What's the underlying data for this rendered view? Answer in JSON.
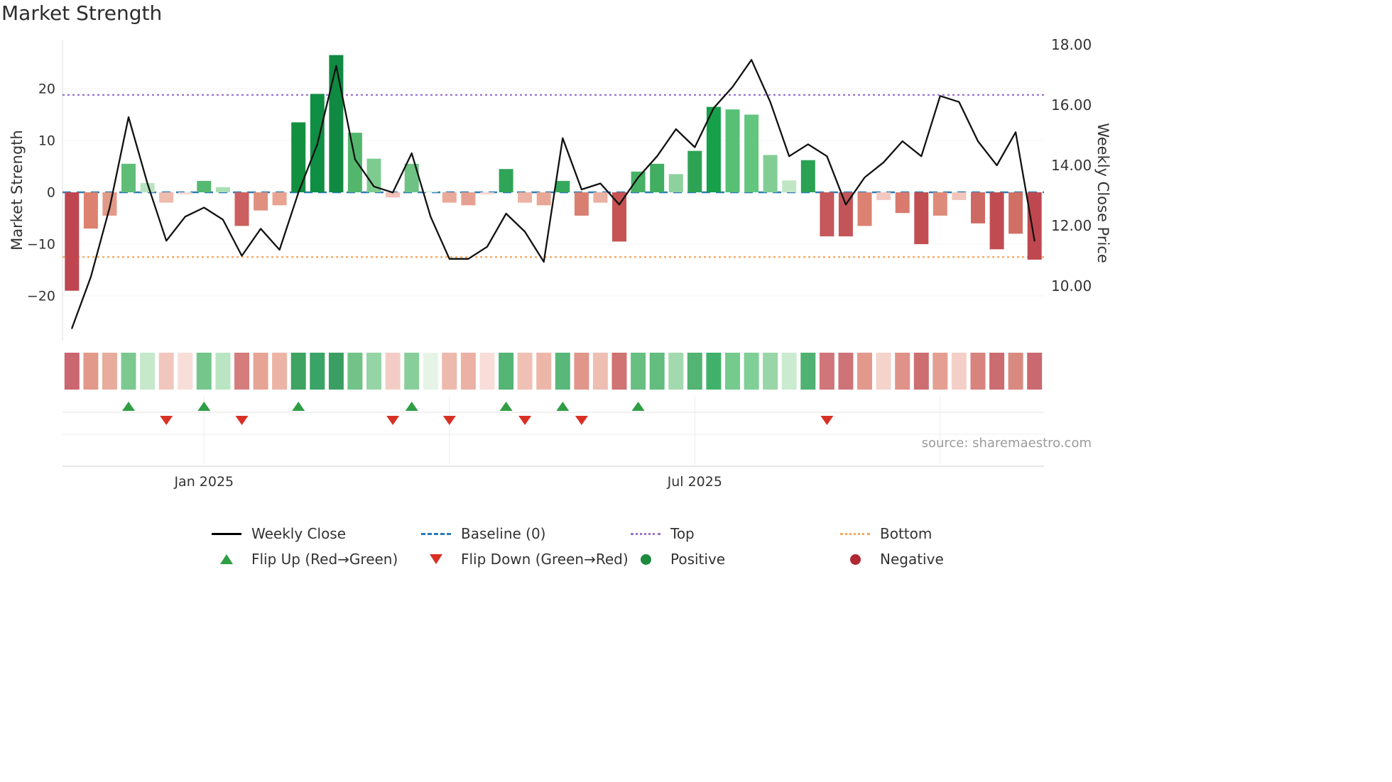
{
  "title": "Market Strength",
  "source": "source: sharemaestro.com",
  "chart_data": {
    "type": "bar+line",
    "weeks": 52,
    "ylabel_left": "Market Strength",
    "ylabel_right": "Weekly Close Price",
    "left_axis": {
      "ticks": [
        -20,
        -10,
        0,
        10,
        20
      ],
      "ylim": [
        -28,
        30
      ]
    },
    "right_axis": {
      "ticks": [
        18,
        16,
        14,
        12,
        10
      ],
      "tick_labels": [
        "18.00",
        "16.00",
        "14.00",
        "12.00",
        "10.00"
      ],
      "ylim": [
        8.2,
        18.3
      ]
    },
    "x_ticks": [
      {
        "label": "Jan 2025",
        "week": 8
      },
      {
        "label": "Jul 2025",
        "week": 34
      }
    ],
    "x_gridline_weeks": [
      8,
      21,
      34,
      47
    ],
    "series": [
      {
        "name": "Market Strength",
        "type": "bar",
        "axis": "left",
        "values": [
          -19,
          -7,
          -4.5,
          5.5,
          1.8,
          -2,
          -0.4,
          2.2,
          1,
          -6.5,
          -3.5,
          -2.5,
          13.5,
          19,
          26.5,
          11.5,
          6.5,
          -1,
          5.5,
          0.3,
          -2,
          -2.5,
          -0.4,
          4.5,
          -2,
          -2.5,
          2.2,
          -4.5,
          -2,
          -9.5,
          4,
          5.5,
          3.5,
          8,
          16.5,
          16,
          15,
          7.2,
          2.3,
          6.2,
          -8.5,
          -8.5,
          -6.5,
          -1.5,
          -4,
          -10,
          -4.5,
          -1.5,
          -6,
          -11,
          -8,
          -13
        ]
      },
      {
        "name": "Weekly Close",
        "type": "line",
        "axis": "right",
        "values": [
          8.6,
          10.3,
          12.6,
          15.6,
          13.4,
          11.5,
          12.3,
          12.6,
          12.2,
          11.0,
          11.9,
          11.2,
          13.1,
          14.7,
          17.3,
          14.2,
          13.3,
          13.1,
          14.4,
          12.3,
          10.9,
          10.9,
          11.3,
          12.4,
          11.8,
          10.8,
          14.9,
          13.2,
          13.4,
          12.7,
          13.6,
          14.3,
          15.2,
          14.6,
          15.9,
          16.6,
          17.5,
          16.1,
          14.3,
          14.7,
          14.3,
          12.7,
          13.6,
          14.1,
          14.8,
          14.3,
          16.3,
          16.1,
          14.8,
          14.0,
          15.1,
          11.5
        ]
      }
    ],
    "bar_colors": [
      "#bf4650",
      "#dd8270",
      "#e29a86",
      "#5fbd78",
      "#b9e3c0",
      "#eebbae",
      "#f6d7d0",
      "#55b971",
      "#aadfb4",
      "#cc5f5f",
      "#e0907e",
      "#e8a391",
      "#12903f",
      "#0f8f44",
      "#108a42",
      "#53b66d",
      "#7ecb90",
      "#f0c2b8",
      "#6ec384",
      "#dff1e0",
      "#e9aa9a",
      "#e6a091",
      "#f6d6cf",
      "#2fa557",
      "#ecb2a4",
      "#e8a796",
      "#35a95b",
      "#d97f72",
      "#eab0a1",
      "#c65454",
      "#47b166",
      "#41ae62",
      "#8ed19e",
      "#2ea355",
      "#16a04a",
      "#57c075",
      "#63c67f",
      "#82cd94",
      "#c0e6c6",
      "#2aa153",
      "#c6575b",
      "#c3555a",
      "#dc8273",
      "#f2c9c0",
      "#d97a6e",
      "#c24e52",
      "#de8a7a",
      "#f1c5bb",
      "#ce6862",
      "#c04c52",
      "#d07065",
      "#bf4850"
    ],
    "reference_lines": {
      "baseline": 0,
      "top": 18.8,
      "bottom": -12.5
    },
    "flip_up_weeks": [
      4,
      8,
      13,
      19,
      24,
      27,
      31
    ],
    "flip_down_weeks": [
      6,
      10,
      18,
      21,
      25,
      28,
      41
    ]
  },
  "colors": {
    "line": "#111111",
    "baseline": "#2a7ab9",
    "top_line": "#9a72d0",
    "bottom_line": "#f6a65a",
    "flip_up": "#2f9e44",
    "flip_down": "#d93025",
    "positive_dot": "#1d8a3e",
    "negative_dot": "#b02833"
  },
  "legend": {
    "items": [
      {
        "label": "Weekly Close",
        "swatch": "line-solid",
        "color": "#000000"
      },
      {
        "label": "Baseline (0)",
        "swatch": "line-dashed",
        "color": "#2a7ab9"
      },
      {
        "label": "Top",
        "swatch": "line-dotted",
        "color": "#9a72d0"
      },
      {
        "label": "Bottom",
        "swatch": "line-dotted",
        "color": "#f6a65a"
      },
      {
        "label": "Flip Up (Red→Green)",
        "swatch": "triangle-up",
        "color": "#2f9e44"
      },
      {
        "label": "Flip Down (Green→Red)",
        "swatch": "triangle-down",
        "color": "#d93025"
      },
      {
        "label": "Positive",
        "swatch": "dot",
        "color": "#1d8a3e"
      },
      {
        "label": "Negative",
        "swatch": "dot",
        "color": "#b02833"
      }
    ]
  }
}
